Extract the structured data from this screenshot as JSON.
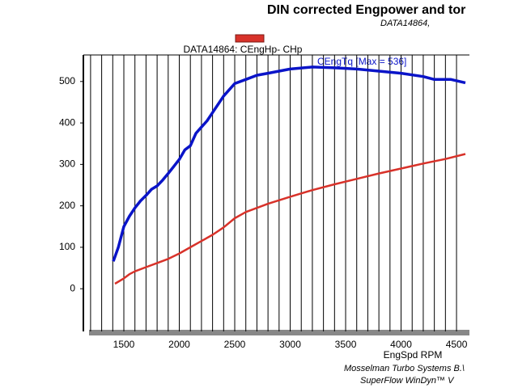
{
  "chart_data": {
    "type": "line",
    "title": "DIN corrected Engpower and tor",
    "subtitle": "DATA14864,",
    "legend_label": "DATA14864: CEngHp-  CHp",
    "annotation": "CEngTq [Max = 536]",
    "x_label": "EngSpd  RPM",
    "footer": [
      "Mosselman Turbo Systems B.\\",
      "SuperFlow WinDyn™ V"
    ],
    "xlim": [
      1135,
      4580
    ],
    "ylim": [
      -103,
      564
    ],
    "xticks": [
      1500,
      2000,
      2500,
      3000,
      3500,
      4000,
      4500
    ],
    "x_minor_ticks": [
      1200,
      1300,
      1400,
      1500,
      1600,
      1700,
      1800,
      1900,
      2000,
      2100,
      2200,
      2300,
      2400,
      2500,
      2600,
      2700,
      2800,
      2900,
      3000,
      3100,
      3200,
      3300,
      3400,
      3500,
      3600,
      3700,
      3800,
      3900,
      4000,
      4100,
      4200,
      4300,
      4400,
      4500
    ],
    "yticks": [
      0,
      100,
      200,
      300,
      400,
      500
    ],
    "grid": true,
    "series": [
      {
        "name": "CEngTq",
        "color": "#0a14c8",
        "x": [
          1405,
          1450,
          1500,
          1550,
          1600,
          1650,
          1700,
          1750,
          1800,
          1850,
          1900,
          1950,
          2000,
          2050,
          2100,
          2150,
          2200,
          2250,
          2300,
          2350,
          2400,
          2450,
          2500,
          2600,
          2700,
          2800,
          2900,
          3000,
          3200,
          3400,
          3600,
          3800,
          4000,
          4200,
          4300,
          4450,
          4580
        ],
        "values": [
          66,
          100,
          150,
          175,
          195,
          212,
          225,
          240,
          248,
          262,
          278,
          295,
          312,
          335,
          345,
          375,
          390,
          405,
          425,
          445,
          465,
          480,
          495,
          505,
          515,
          520,
          525,
          530,
          535,
          533,
          530,
          525,
          520,
          512,
          505,
          505,
          497
        ]
      },
      {
        "name": "CEngHp",
        "color": "#d8322a",
        "x": [
          1420,
          1500,
          1550,
          1600,
          1700,
          1800,
          1900,
          2000,
          2100,
          2200,
          2300,
          2400,
          2500,
          2600,
          2800,
          3000,
          3200,
          3400,
          3600,
          3800,
          4000,
          4200,
          4400,
          4580
        ],
        "values": [
          12,
          25,
          35,
          42,
          52,
          62,
          72,
          85,
          100,
          115,
          130,
          148,
          170,
          185,
          205,
          222,
          238,
          252,
          265,
          278,
          290,
          302,
          313,
          325
        ]
      }
    ]
  }
}
